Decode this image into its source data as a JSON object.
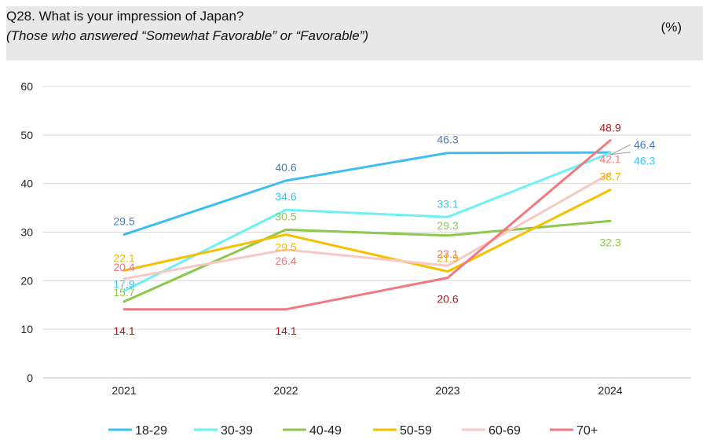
{
  "header": {
    "title": "Q28. What is your impression of Japan?",
    "subtitle": "(Those who answered “Somewhat Favorable” or “Favorable”)",
    "unit": "(%)"
  },
  "chart_data": {
    "type": "line",
    "title": "Q28. What is your impression of Japan?",
    "subtitle": "(Those who answered “Somewhat Favorable” or “Favorable”)",
    "unit": "(%)",
    "categories": [
      "2021",
      "2022",
      "2023",
      "2024"
    ],
    "ylim": [
      0,
      60
    ],
    "yticks": [
      0,
      10,
      20,
      30,
      40,
      50,
      60
    ],
    "grid": true,
    "legend_position": "bottom",
    "series": [
      {
        "name": "18-29",
        "values": [
          29.5,
          40.6,
          46.3,
          46.4
        ],
        "color": "#3cbef2",
        "label_color": "#4a78c0"
      },
      {
        "name": "30-39",
        "values": [
          17.9,
          34.6,
          33.1,
          46.3
        ],
        "color": "#6ef0f5",
        "label_color": "#3cc4ec"
      },
      {
        "name": "40-49",
        "values": [
          15.7,
          30.5,
          29.3,
          32.3
        ],
        "color": "#8cc84b",
        "label_color": "#8cc84b"
      },
      {
        "name": "50-59",
        "values": [
          22.1,
          29.5,
          21.9,
          38.7
        ],
        "color": "#f6c000",
        "label_color": "#f0b800"
      },
      {
        "name": "60-69",
        "values": [
          20.4,
          26.4,
          23.1,
          42.1
        ],
        "color": "#f8c8c4",
        "label_color": "#f07878"
      },
      {
        "name": "70+",
        "values": [
          14.1,
          14.1,
          20.6,
          48.9
        ],
        "color": "#f07a80",
        "label_color": "#b01818"
      }
    ]
  }
}
